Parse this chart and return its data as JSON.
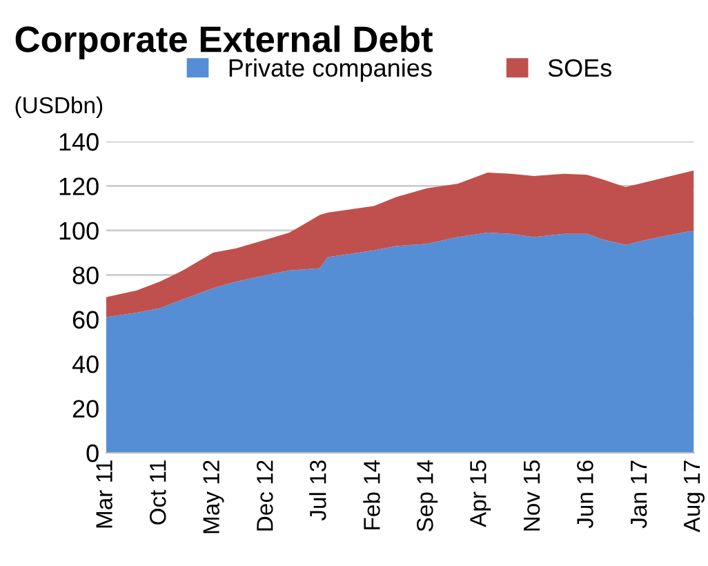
{
  "chart_data": {
    "type": "area",
    "stacked": true,
    "title": "Corporate External Debt",
    "ylabel": "(USDbn)",
    "x": [
      "2011-03",
      "2011-07",
      "2011-10",
      "2012-01",
      "2012-05",
      "2012-08",
      "2012-12",
      "2013-03",
      "2013-05",
      "2013-07",
      "2013-08",
      "2014-02",
      "2014-05",
      "2014-09",
      "2015-01",
      "2015-05",
      "2015-08",
      "2015-11",
      "2016-03",
      "2016-06",
      "2016-08",
      "2016-11",
      "2017-02",
      "2017-05",
      "2017-08"
    ],
    "series": [
      {
        "name": "Private companies",
        "color": "#558ed5",
        "values": [
          61,
          63,
          65,
          69,
          74,
          77,
          80,
          82,
          82.5,
          83,
          88,
          91,
          93,
          94,
          97,
          99,
          98.5,
          97,
          98.5,
          98.5,
          96,
          93.5,
          96,
          98,
          100
        ]
      },
      {
        "name": "SOEs",
        "color": "#c0504d",
        "values": [
          9,
          10,
          12,
          13,
          16,
          15,
          16,
          17,
          20.5,
          24,
          20,
          20,
          22,
          25,
          24,
          27,
          27,
          27.5,
          27,
          26.5,
          27,
          26,
          26,
          26.5,
          27
        ]
      }
    ],
    "ylim": [
      0,
      140
    ],
    "yticks": [
      0,
      20,
      40,
      60,
      80,
      100,
      120,
      140
    ],
    "xlim": [
      "2011-03",
      "2017-08"
    ],
    "xticks": [
      {
        "value": "2011-03",
        "label": "Mar 11"
      },
      {
        "value": "2011-10",
        "label": "Oct 11"
      },
      {
        "value": "2012-05",
        "label": "May 12"
      },
      {
        "value": "2012-12",
        "label": "Dec 12"
      },
      {
        "value": "2013-07",
        "label": "Jul 13"
      },
      {
        "value": "2014-02",
        "label": "Feb 14"
      },
      {
        "value": "2014-09",
        "label": "Sep 14"
      },
      {
        "value": "2015-04",
        "label": "Apr 15"
      },
      {
        "value": "2015-11",
        "label": "Nov 15"
      },
      {
        "value": "2016-06",
        "label": "Jun 16"
      },
      {
        "value": "2017-01",
        "label": "Jan 17"
      },
      {
        "value": "2017-08",
        "label": "Aug 17"
      }
    ],
    "grid": "y",
    "legend": "top"
  }
}
